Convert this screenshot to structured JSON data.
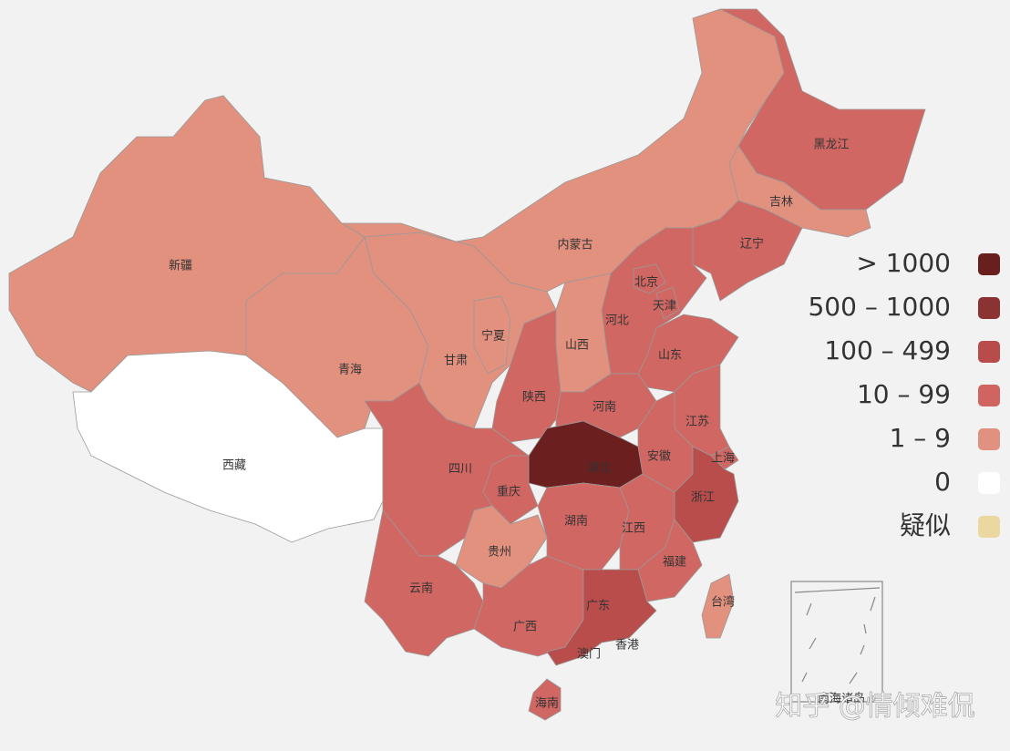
{
  "map": {
    "provinces": [
      {
        "name": "新疆",
        "color": "#e1917e"
      },
      {
        "name": "西藏",
        "color": "#ffffff"
      },
      {
        "name": "青海",
        "color": "#e1917e"
      },
      {
        "name": "甘肃",
        "color": "#e1917e"
      },
      {
        "name": "宁夏",
        "color": "#e1917e"
      },
      {
        "name": "内蒙古",
        "color": "#e1917e"
      },
      {
        "name": "黑龙江",
        "color": "#d06763"
      },
      {
        "name": "吉林",
        "color": "#e1917e"
      },
      {
        "name": "辽宁",
        "color": "#d06763"
      },
      {
        "name": "河北",
        "color": "#d06763"
      },
      {
        "name": "北京",
        "color": "#d06763"
      },
      {
        "name": "天津",
        "color": "#d06763"
      },
      {
        "name": "山西",
        "color": "#e1917e"
      },
      {
        "name": "山东",
        "color": "#d06763"
      },
      {
        "name": "陕西",
        "color": "#d06763"
      },
      {
        "name": "河南",
        "color": "#d06763"
      },
      {
        "name": "江苏",
        "color": "#d06763"
      },
      {
        "name": "上海",
        "color": "#d06763"
      },
      {
        "name": "安徽",
        "color": "#d06763"
      },
      {
        "name": "湖北",
        "color": "#6b1f1f"
      },
      {
        "name": "浙江",
        "color": "#b94d4b"
      },
      {
        "name": "四川",
        "color": "#d06763"
      },
      {
        "name": "重庆",
        "color": "#d06763"
      },
      {
        "name": "贵州",
        "color": "#e1917e"
      },
      {
        "name": "湖南",
        "color": "#d06763"
      },
      {
        "name": "江西",
        "color": "#d06763"
      },
      {
        "name": "福建",
        "color": "#d06763"
      },
      {
        "name": "台湾",
        "color": "#e1917e"
      },
      {
        "name": "云南",
        "color": "#d06763"
      },
      {
        "name": "广西",
        "color": "#d06763"
      },
      {
        "name": "广东",
        "color": "#b94d4b"
      },
      {
        "name": "海南",
        "color": "#d06763"
      }
    ],
    "small_regions": [
      "澳门",
      "香港"
    ],
    "inset_label": "南海诸岛",
    "legend": [
      {
        "label": "> 1000",
        "color": "#6a1f1f"
      },
      {
        "label": "500 – 1000",
        "color": "#8b3333"
      },
      {
        "label": "100 – 499",
        "color": "#b84c4a"
      },
      {
        "label": "10 – 99",
        "color": "#cf6461"
      },
      {
        "label": "1 – 9",
        "color": "#e0917f"
      },
      {
        "label": "0",
        "color": "#ffffff"
      },
      {
        "label": "疑似",
        "color": "#ebd7a0"
      }
    ],
    "watermark": "知乎 @情倾难侃"
  }
}
